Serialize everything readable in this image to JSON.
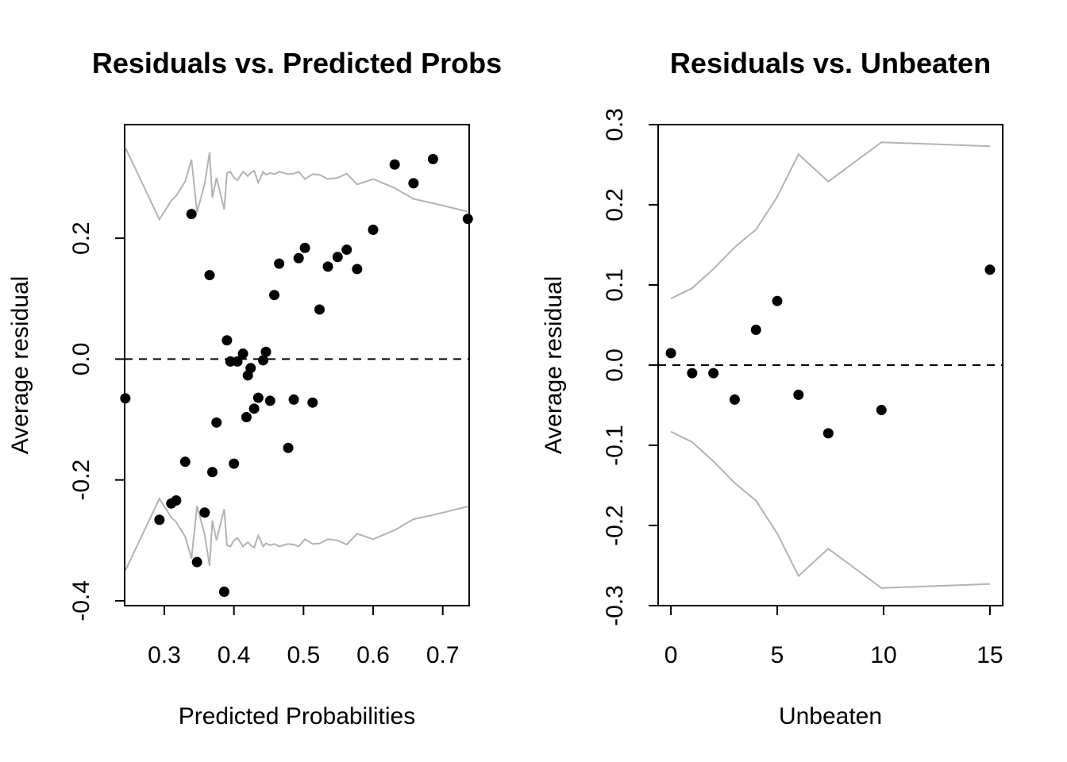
{
  "chart_data": [
    {
      "type": "scatter",
      "title": "Residuals vs. Predicted Probs",
      "xlabel": "Predicted Probabilities",
      "ylabel": "Average residual",
      "xlim": [
        0.243,
        0.738
      ],
      "ylim": [
        -0.408,
        0.388
      ],
      "xticks": [
        0.3,
        0.4,
        0.5,
        0.6,
        0.7
      ],
      "xtick_labels": [
        "0.3",
        "0.4",
        "0.5",
        "0.6",
        "0.7"
      ],
      "yticks": [
        -0.4,
        -0.2,
        0.0,
        0.2
      ],
      "ytick_labels": [
        "-0.4",
        "-0.2",
        "0.0",
        "0.2"
      ],
      "reference_line": {
        "y": 0,
        "style": "dashed"
      },
      "point_color": "#000000",
      "band_color": "#b3b3b3",
      "points": {
        "x": [
          0.244,
          0.293,
          0.31,
          0.317,
          0.33,
          0.339,
          0.347,
          0.358,
          0.365,
          0.369,
          0.375,
          0.386,
          0.39,
          0.395,
          0.4,
          0.405,
          0.413,
          0.418,
          0.42,
          0.424,
          0.429,
          0.435,
          0.442,
          0.446,
          0.452,
          0.458,
          0.465,
          0.478,
          0.486,
          0.493,
          0.502,
          0.513,
          0.523,
          0.535,
          0.549,
          0.562,
          0.577,
          0.6,
          0.631,
          0.658,
          0.686,
          0.736
        ],
        "y": [
          -0.065,
          -0.266,
          -0.239,
          -0.234,
          -0.17,
          0.24,
          -0.336,
          -0.254,
          0.139,
          -0.187,
          -0.105,
          -0.385,
          0.031,
          -0.004,
          -0.173,
          -0.004,
          0.009,
          -0.096,
          -0.027,
          -0.015,
          -0.082,
          -0.064,
          -0.002,
          0.012,
          -0.069,
          0.106,
          0.158,
          -0.147,
          -0.067,
          0.167,
          0.184,
          -0.072,
          0.082,
          0.153,
          0.169,
          0.181,
          0.149,
          0.214,
          0.322,
          0.291,
          0.331,
          0.232
        ]
      },
      "upper_band": {
        "x": [
          0.244,
          0.293,
          0.31,
          0.317,
          0.33,
          0.339,
          0.347,
          0.358,
          0.365,
          0.369,
          0.375,
          0.386,
          0.39,
          0.395,
          0.4,
          0.405,
          0.413,
          0.418,
          0.42,
          0.424,
          0.429,
          0.435,
          0.442,
          0.446,
          0.452,
          0.458,
          0.465,
          0.478,
          0.486,
          0.493,
          0.502,
          0.513,
          0.523,
          0.535,
          0.549,
          0.562,
          0.577,
          0.6,
          0.631,
          0.658,
          0.686,
          0.736
        ],
        "y": [
          0.35,
          0.231,
          0.262,
          0.27,
          0.294,
          0.33,
          0.243,
          0.29,
          0.342,
          0.267,
          0.3,
          0.248,
          0.308,
          0.31,
          0.3,
          0.296,
          0.31,
          0.305,
          0.303,
          0.308,
          0.312,
          0.292,
          0.31,
          0.305,
          0.308,
          0.306,
          0.31,
          0.306,
          0.307,
          0.31,
          0.298,
          0.306,
          0.305,
          0.298,
          0.3,
          0.307,
          0.289,
          0.298,
          0.283,
          0.265,
          0.258,
          0.244
        ]
      },
      "lower_band": {
        "x": [
          0.244,
          0.293,
          0.31,
          0.317,
          0.33,
          0.339,
          0.347,
          0.358,
          0.365,
          0.369,
          0.375,
          0.386,
          0.39,
          0.395,
          0.4,
          0.405,
          0.413,
          0.418,
          0.42,
          0.424,
          0.429,
          0.435,
          0.442,
          0.446,
          0.452,
          0.458,
          0.465,
          0.478,
          0.486,
          0.493,
          0.502,
          0.513,
          0.523,
          0.535,
          0.549,
          0.562,
          0.577,
          0.6,
          0.631,
          0.658,
          0.686,
          0.736
        ],
        "y": [
          -0.35,
          -0.231,
          -0.262,
          -0.27,
          -0.294,
          -0.33,
          -0.243,
          -0.29,
          -0.342,
          -0.267,
          -0.3,
          -0.248,
          -0.308,
          -0.31,
          -0.3,
          -0.296,
          -0.31,
          -0.305,
          -0.303,
          -0.308,
          -0.312,
          -0.292,
          -0.31,
          -0.305,
          -0.308,
          -0.306,
          -0.31,
          -0.306,
          -0.307,
          -0.31,
          -0.298,
          -0.306,
          -0.305,
          -0.298,
          -0.3,
          -0.307,
          -0.289,
          -0.298,
          -0.283,
          -0.265,
          -0.258,
          -0.244
        ]
      }
    },
    {
      "type": "scatter",
      "title": "Residuals vs. Unbeaten",
      "xlabel": "Unbeaten",
      "ylabel": "Average residual",
      "xlim": [
        -0.6,
        15.6
      ],
      "ylim": [
        -0.3,
        0.3
      ],
      "xticks": [
        0,
        5,
        10,
        15
      ],
      "xtick_labels": [
        "0",
        "5",
        "10",
        "15"
      ],
      "yticks": [
        -0.3,
        -0.2,
        -0.1,
        0.0,
        0.1,
        0.2,
        0.3
      ],
      "ytick_labels": [
        "-0.3",
        "-0.2",
        "-0.1",
        "0.0",
        "0.1",
        "0.2",
        "0.3"
      ],
      "reference_line": {
        "y": 0,
        "style": "dashed"
      },
      "point_color": "#000000",
      "band_color": "#b3b3b3",
      "points": {
        "x": [
          0,
          1,
          2,
          3,
          4,
          5,
          6,
          7.4,
          9.9,
          15
        ],
        "y": [
          0.015,
          -0.01,
          -0.01,
          -0.043,
          0.044,
          0.08,
          -0.037,
          -0.085,
          -0.056,
          0.119
        ]
      },
      "upper_band": {
        "x": [
          0,
          1,
          2,
          3,
          4,
          5,
          6,
          7.4,
          9.9,
          15
        ],
        "y": [
          0.083,
          0.096,
          0.12,
          0.147,
          0.169,
          0.21,
          0.263,
          0.229,
          0.278,
          0.273
        ]
      },
      "lower_band": {
        "x": [
          0,
          1,
          2,
          3,
          4,
          5,
          6,
          7.4,
          9.9,
          15
        ],
        "y": [
          -0.083,
          -0.096,
          -0.12,
          -0.147,
          -0.169,
          -0.21,
          -0.263,
          -0.229,
          -0.278,
          -0.273
        ]
      }
    }
  ]
}
